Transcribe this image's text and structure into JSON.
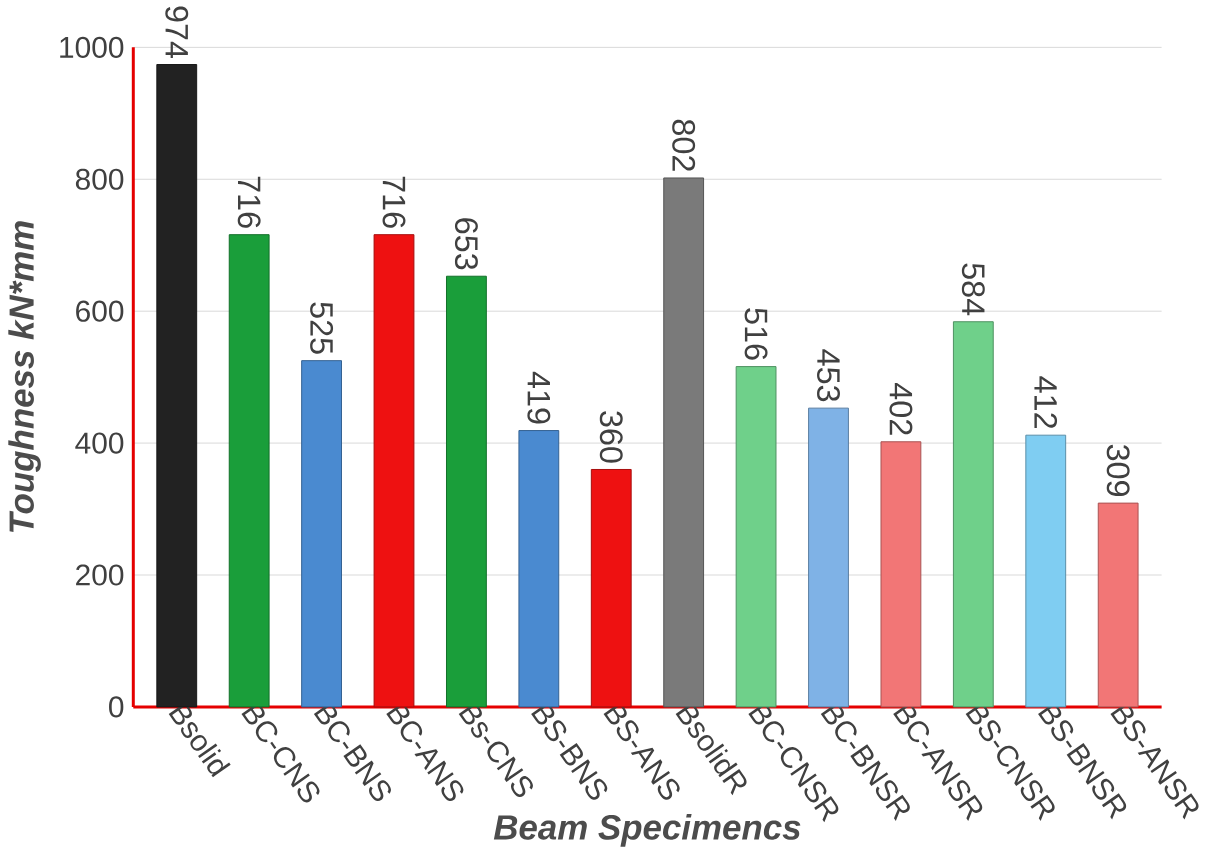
{
  "chart_data": {
    "type": "bar",
    "xlabel": "Beam Specimencs",
    "ylabel": "Toughness kN*mm",
    "categories": [
      "Bsolid",
      "BC-CNS",
      "BC-BNS",
      "BC-ANS",
      "Bs-CNS",
      "BS-BNS",
      "BS-ANS",
      "BsolidR",
      "BC-CNSR",
      "BC-BNSR",
      "BC-ANSR",
      "BS-CNSR",
      "BS-BNSR",
      "BS-ANSR"
    ],
    "values": [
      974,
      716,
      525,
      716,
      653,
      419,
      360,
      802,
      516,
      453,
      402,
      584,
      412,
      309
    ],
    "colors": [
      "#222222",
      "#1a9e3a",
      "#4a8ad0",
      "#ee1111",
      "#1a9e3a",
      "#4a8ad0",
      "#ee1111",
      "#7a7a7a",
      "#6fd08a",
      "#7fb2e6",
      "#f27676",
      "#6fd08a",
      "#7fcdf2",
      "#f27676"
    ],
    "ylim": [
      0,
      1000
    ],
    "yticks": [
      0,
      200,
      400,
      600,
      800,
      1000
    ],
    "grid": "y",
    "data_labels": true
  }
}
